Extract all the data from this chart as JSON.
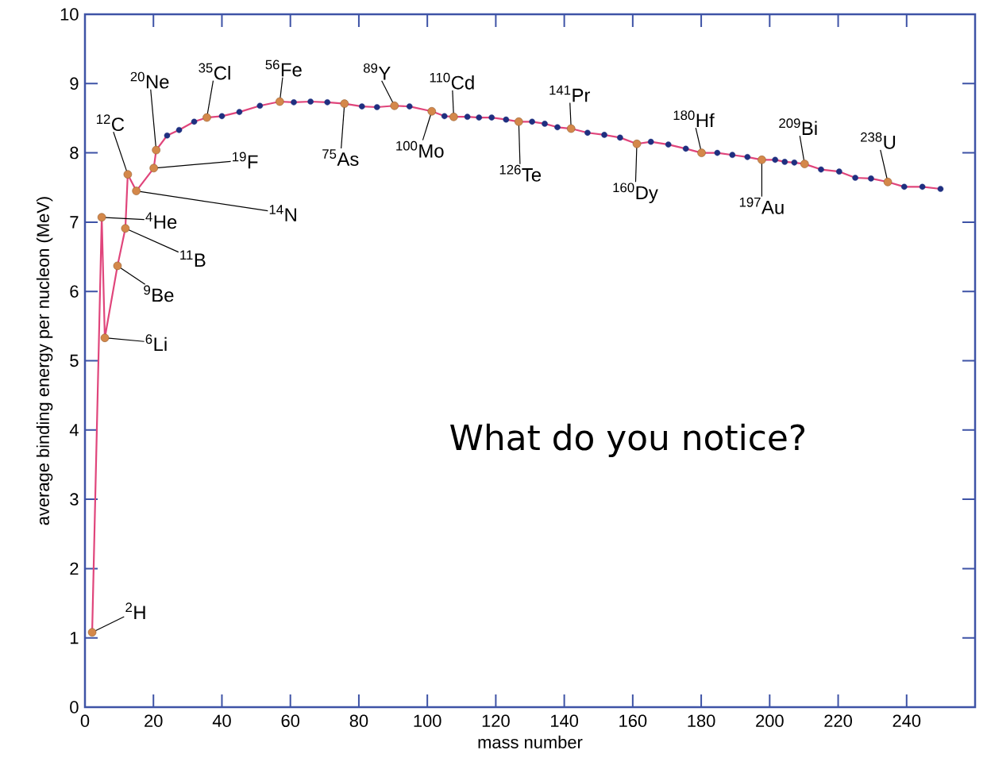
{
  "chart_data": {
    "type": "line",
    "xlabel": "mass number",
    "ylabel": "average binding energy per nucleon (MeV)",
    "xlim": [
      0,
      260
    ],
    "ylim": [
      0,
      10
    ],
    "xticks": [
      0,
      20,
      40,
      60,
      80,
      100,
      120,
      140,
      160,
      180,
      200,
      220,
      240
    ],
    "yticks": [
      0,
      1,
      2,
      3,
      4,
      5,
      6,
      7,
      8,
      9,
      10
    ],
    "grid": false,
    "series": [
      {
        "color": "#e0457b",
        "marker": "none",
        "x": [
          2.1,
          4.9,
          5.8,
          9.5,
          11.8,
          12.5,
          15.0,
          20.1,
          20.8,
          24.0,
          27.5,
          31.9,
          35.6,
          40.0,
          45.1,
          51.1,
          56.9,
          61.0,
          65.9,
          70.8,
          75.8,
          80.9,
          85.3,
          90.4,
          94.8,
          101.3,
          105.0,
          107.7,
          111.7,
          115.1,
          118.8,
          123.0,
          126.7,
          130.6,
          134.3,
          138.0,
          142.0,
          146.8,
          151.7,
          156.3,
          161.2,
          165.3,
          170.4,
          175.5,
          180.1,
          184.7,
          189.1,
          193.5,
          197.7,
          201.6,
          204.4,
          207.2,
          210.2,
          215.0,
          220.3,
          225.0,
          229.6,
          234.5,
          239.3,
          244.6,
          249.9
        ],
        "values": [
          1.08,
          7.07,
          5.33,
          6.37,
          6.91,
          7.69,
          7.45,
          7.78,
          8.04,
          8.25,
          8.33,
          8.45,
          8.51,
          8.53,
          8.59,
          8.68,
          8.74,
          8.73,
          8.74,
          8.73,
          8.71,
          8.67,
          8.66,
          8.68,
          8.67,
          8.6,
          8.53,
          8.52,
          8.52,
          8.51,
          8.51,
          8.48,
          8.45,
          8.45,
          8.42,
          8.37,
          8.35,
          8.29,
          8.26,
          8.22,
          8.13,
          8.16,
          8.12,
          8.06,
          8.0,
          8.0,
          7.97,
          7.94,
          7.9,
          7.9,
          7.87,
          7.86,
          7.84,
          7.76,
          7.73,
          7.64,
          7.63,
          7.58,
          7.51,
          7.51,
          7.48
        ]
      },
      {
        "type": "scatter",
        "color": "#1f2f80",
        "marker": "circle",
        "x": [
          24.0,
          27.5,
          31.9,
          40.0,
          45.1,
          51.1,
          61.0,
          65.9,
          70.8,
          80.9,
          85.3,
          94.8,
          105.0,
          111.7,
          115.1,
          118.8,
          123.0,
          130.6,
          134.3,
          138.0,
          146.8,
          151.7,
          156.3,
          165.3,
          170.4,
          175.5,
          184.7,
          189.1,
          193.5,
          201.6,
          204.4,
          207.2,
          215.0,
          220.3,
          225.0,
          229.6,
          239.3,
          244.6,
          249.9
        ],
        "values": [
          8.25,
          8.33,
          8.45,
          8.53,
          8.59,
          8.68,
          8.73,
          8.74,
          8.73,
          8.67,
          8.66,
          8.67,
          8.53,
          8.52,
          8.51,
          8.51,
          8.48,
          8.45,
          8.42,
          8.37,
          8.29,
          8.26,
          8.22,
          8.16,
          8.12,
          8.06,
          8.0,
          7.97,
          7.94,
          7.9,
          7.87,
          7.86,
          7.76,
          7.73,
          7.64,
          7.63,
          7.51,
          7.51,
          7.48
        ]
      },
      {
        "type": "scatter",
        "color": "#d4884a",
        "marker": "circle",
        "x": [
          2.1,
          4.9,
          5.8,
          9.5,
          11.8,
          12.5,
          15.0,
          20.1,
          20.8,
          35.6,
          56.9,
          75.8,
          90.4,
          101.3,
          107.7,
          126.7,
          142.0,
          161.2,
          180.1,
          197.7,
          210.2,
          234.5
        ],
        "values": [
          1.08,
          7.07,
          5.33,
          6.37,
          6.91,
          7.69,
          7.45,
          7.78,
          8.04,
          8.51,
          8.74,
          8.71,
          8.68,
          8.6,
          8.52,
          8.45,
          8.35,
          8.13,
          8.0,
          7.9,
          7.84,
          7.58
        ]
      }
    ],
    "annotations": [
      {
        "text": "$^{2}$H",
        "x": 2.1,
        "y": 1.08
      },
      {
        "text": "$^{4}$He",
        "x": 4.9,
        "y": 7.07
      },
      {
        "text": "$^{6}$Li",
        "x": 5.8,
        "y": 5.33
      },
      {
        "text": "$^{9}$Be",
        "x": 9.5,
        "y": 6.37
      },
      {
        "text": "$^{11}$B",
        "x": 11.8,
        "y": 6.91
      },
      {
        "text": "$^{12}$C",
        "x": 12.5,
        "y": 7.69
      },
      {
        "text": "$^{14}$N",
        "x": 15.0,
        "y": 7.45
      },
      {
        "text": "$^{19}$F",
        "x": 20.1,
        "y": 7.78
      },
      {
        "text": "$^{20}$Ne",
        "x": 20.8,
        "y": 8.04
      },
      {
        "text": "$^{35}$Cl",
        "x": 35.6,
        "y": 8.51
      },
      {
        "text": "$^{56}$Fe",
        "x": 56.9,
        "y": 8.74
      },
      {
        "text": "$^{75}$As",
        "x": 75.8,
        "y": 8.71
      },
      {
        "text": "$^{89}$Y",
        "x": 90.4,
        "y": 8.68
      },
      {
        "text": "$^{100}$Mo",
        "x": 101.3,
        "y": 8.6
      },
      {
        "text": "$^{110}$Cd",
        "x": 107.7,
        "y": 8.52
      },
      {
        "text": "$^{126}$Te",
        "x": 126.7,
        "y": 8.45
      },
      {
        "text": "$^{141}$Pr",
        "x": 142.0,
        "y": 8.35
      },
      {
        "text": "$^{160}$Dy",
        "x": 161.2,
        "y": 8.13
      },
      {
        "text": "$^{180}$Hf",
        "x": 180.1,
        "y": 8.0
      },
      {
        "text": "$^{197}$Au",
        "x": 197.7,
        "y": 7.9
      },
      {
        "text": "$^{209}$Bi",
        "x": 210.2,
        "y": 7.84
      },
      {
        "text": "$^{238}$U",
        "x": 234.5,
        "y": 7.58
      },
      "What do you notice?"
    ]
  }
}
